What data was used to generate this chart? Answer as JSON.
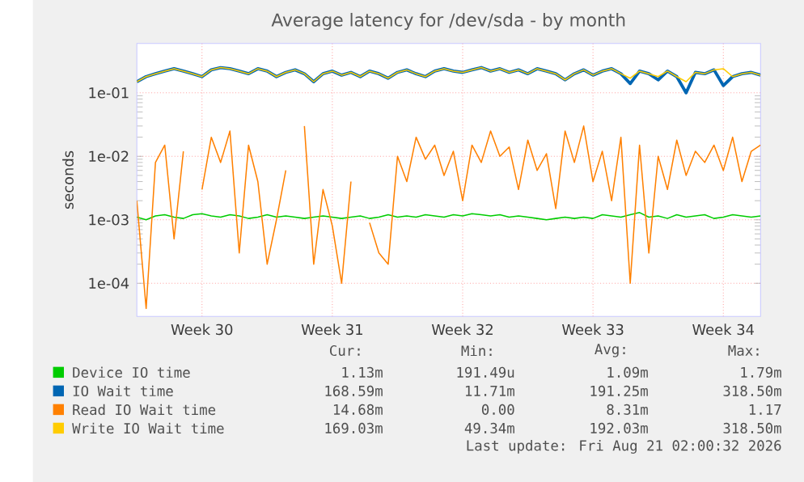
{
  "chart_data": {
    "type": "line",
    "title": "Average latency for /dev/sda - by month",
    "ylabel": "seconds",
    "log": "y",
    "grid": true,
    "legend": "bottom",
    "marker": "none",
    "line_style": "solid",
    "ylim": [
      3e-05,
      0.6
    ],
    "yticks": [
      {
        "value": 0.0001,
        "label": "1e-04"
      },
      {
        "value": 0.001,
        "label": "1e-03"
      },
      {
        "value": 0.01,
        "label": "1e-02"
      },
      {
        "value": 0.1,
        "label": "1e-01"
      }
    ],
    "categories": [
      null,
      null,
      null,
      null,
      null,
      null,
      null,
      "Week 30",
      null,
      null,
      null,
      null,
      null,
      null,
      null,
      null,
      null,
      null,
      null,
      null,
      null,
      "Week 31",
      null,
      null,
      null,
      null,
      null,
      null,
      null,
      null,
      null,
      null,
      null,
      null,
      null,
      "Week 32",
      null,
      null,
      null,
      null,
      null,
      null,
      null,
      null,
      null,
      null,
      null,
      null,
      null,
      "Week 33",
      null,
      null,
      null,
      null,
      null,
      null,
      null,
      null,
      null,
      null,
      null,
      null,
      null,
      "Week 34",
      null,
      null,
      null,
      null
    ],
    "series": [
      {
        "name": "Device IO time",
        "color": "#00cc00",
        "values": [
          0.0011,
          0.001,
          0.00115,
          0.0012,
          0.0011,
          0.00105,
          0.0012,
          0.00125,
          0.00115,
          0.0011,
          0.0012,
          0.00115,
          0.00105,
          0.0011,
          0.0012,
          0.0011,
          0.00115,
          0.0011,
          0.00105,
          0.0011,
          0.00115,
          0.0011,
          0.00105,
          0.0011,
          0.00115,
          0.00105,
          0.0011,
          0.0012,
          0.0011,
          0.00115,
          0.0011,
          0.0012,
          0.00115,
          0.0011,
          0.0012,
          0.00115,
          0.00125,
          0.0012,
          0.00115,
          0.0012,
          0.0011,
          0.00115,
          0.0011,
          0.00105,
          0.001,
          0.00105,
          0.0011,
          0.00105,
          0.0011,
          0.00105,
          0.0012,
          0.00115,
          0.0011,
          0.0012,
          0.0013,
          0.0011,
          0.00115,
          0.00105,
          0.0012,
          0.0011,
          0.00115,
          0.0012,
          0.00105,
          0.0011,
          0.0012,
          0.00115,
          0.0011,
          0.00115
        ]
      },
      {
        "name": "IO Wait time",
        "color": "#0066b3",
        "values": [
          0.15,
          0.18,
          0.2,
          0.22,
          0.24,
          0.22,
          0.2,
          0.18,
          0.23,
          0.25,
          0.24,
          0.22,
          0.2,
          0.24,
          0.22,
          0.18,
          0.21,
          0.23,
          0.2,
          0.15,
          0.2,
          0.22,
          0.19,
          0.21,
          0.18,
          0.22,
          0.2,
          0.17,
          0.21,
          0.23,
          0.2,
          0.18,
          0.22,
          0.24,
          0.22,
          0.21,
          0.23,
          0.25,
          0.22,
          0.24,
          0.21,
          0.23,
          0.2,
          0.24,
          0.22,
          0.2,
          0.16,
          0.2,
          0.23,
          0.19,
          0.22,
          0.24,
          0.2,
          0.14,
          0.22,
          0.2,
          0.16,
          0.22,
          0.18,
          0.1,
          0.21,
          0.2,
          0.23,
          0.13,
          0.18,
          0.2,
          0.21,
          0.19
        ]
      },
      {
        "name": "Read IO Wait time",
        "color": "#ff8000",
        "values": [
          0.002,
          4e-05,
          0.008,
          0.015,
          0.0005,
          0.012,
          null,
          0.003,
          0.02,
          0.008,
          0.025,
          0.0003,
          0.015,
          0.004,
          0.0002,
          0.001,
          0.006,
          null,
          0.03,
          0.0002,
          0.003,
          0.0008,
          0.0001,
          0.004,
          null,
          0.0009,
          0.0003,
          0.0002,
          0.01,
          0.004,
          0.02,
          0.009,
          0.015,
          0.005,
          0.012,
          0.002,
          0.015,
          0.008,
          0.025,
          0.01,
          0.014,
          0.003,
          0.018,
          0.006,
          0.011,
          0.0015,
          0.025,
          0.008,
          0.03,
          0.004,
          0.012,
          0.002,
          0.02,
          0.0001,
          0.015,
          0.0003,
          0.01,
          0.003,
          0.018,
          0.005,
          0.012,
          0.008,
          0.015,
          0.006,
          0.02,
          0.004,
          0.012,
          0.015
        ]
      },
      {
        "name": "Write IO Wait time",
        "color": "#ffcc00",
        "values": [
          0.15,
          0.18,
          0.2,
          0.22,
          0.24,
          0.22,
          0.2,
          0.18,
          0.23,
          0.25,
          0.24,
          0.22,
          0.2,
          0.24,
          0.22,
          0.18,
          0.21,
          0.23,
          0.2,
          0.15,
          0.2,
          0.22,
          0.19,
          0.21,
          0.18,
          0.22,
          0.2,
          0.17,
          0.21,
          0.23,
          0.2,
          0.18,
          0.22,
          0.24,
          0.22,
          0.21,
          0.23,
          0.25,
          0.22,
          0.24,
          0.21,
          0.23,
          0.2,
          0.24,
          0.22,
          0.2,
          0.16,
          0.2,
          0.23,
          0.19,
          0.22,
          0.24,
          0.2,
          0.17,
          0.22,
          0.2,
          0.18,
          0.22,
          0.18,
          0.15,
          0.21,
          0.2,
          0.23,
          0.24,
          0.18,
          0.2,
          0.21,
          0.19
        ]
      }
    ],
    "annotations": [
      "Cur:",
      "Min:",
      "Avg:",
      "Max:",
      "1.13m",
      "191.49u",
      "1.09m",
      "1.79m",
      "168.59m",
      "11.71m",
      "191.25m",
      "318.50m",
      "14.68m",
      "0.00",
      "8.31m",
      "1.17",
      "169.03m",
      "49.34m",
      "192.03m",
      "318.50m",
      "Last update: Fri Aug 21 02:00:32 2026"
    ]
  }
}
